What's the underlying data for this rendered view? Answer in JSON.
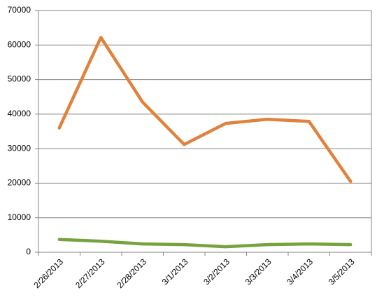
{
  "chart_data": {
    "type": "line",
    "categories": [
      "2/26/2013",
      "2/27/2013",
      "2/28/2013",
      "3/1/2013",
      "3/2/2013",
      "3/3/2013",
      "3/4/2013",
      "3/5/2013"
    ],
    "series": [
      {
        "color": "#e0823c",
        "values": [
          36000,
          62200,
          43500,
          31200,
          37300,
          38500,
          37900,
          20500
        ]
      },
      {
        "color": "#77a33f",
        "values": [
          3700,
          3200,
          2400,
          2200,
          1600,
          2200,
          2400,
          2200
        ]
      }
    ],
    "ylim": [
      0,
      70000
    ],
    "yticks": [
      0,
      10000,
      20000,
      30000,
      40000,
      50000,
      60000,
      70000
    ],
    "grid": true
  }
}
